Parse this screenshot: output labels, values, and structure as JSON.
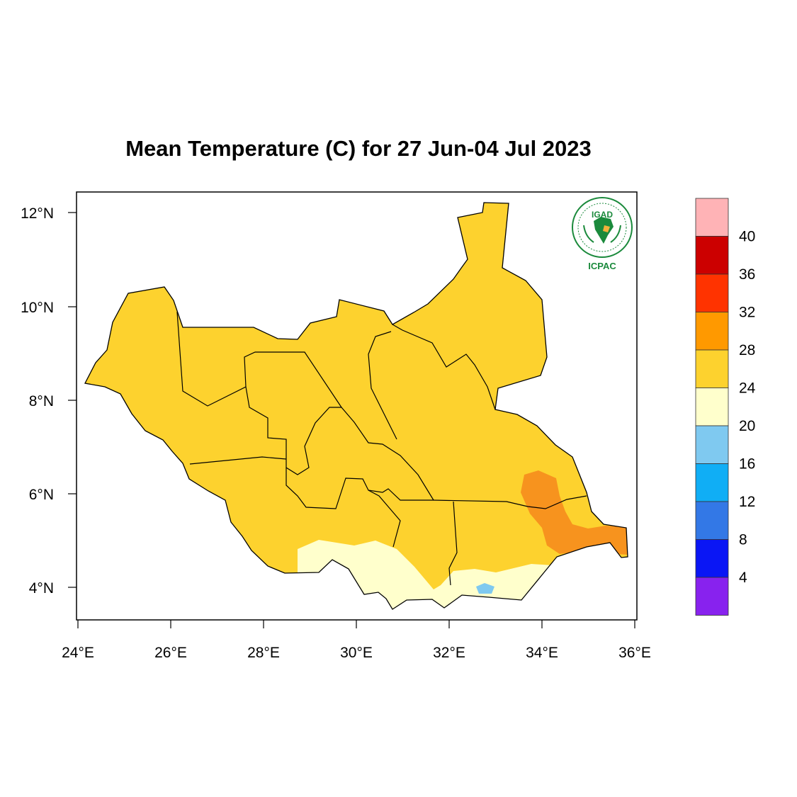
{
  "title": "Mean Temperature (C) for 27 Jun-04 Jul 2023",
  "map": {
    "region": "South Sudan",
    "lon_range": [
      24,
      36
    ],
    "lat_range": [
      3.5,
      12.5
    ],
    "x_ticks": [
      "24°E",
      "26°E",
      "28°E",
      "30°E",
      "32°E",
      "34°E",
      "36°E"
    ],
    "y_ticks": [
      "12°N",
      "10°N",
      "8°N",
      "6°N",
      "4°N"
    ],
    "dominant_class": "24-28",
    "warm_zone": {
      "class": "28-32",
      "location": "south-east (Kapoeta / Ilemi area)"
    },
    "cool_zone": {
      "class": "20-24",
      "location": "southern border"
    },
    "coldest_spot": {
      "class": "16-20",
      "location": "near 32.8°E, 4°N"
    }
  },
  "legend": {
    "labels": [
      "40",
      "36",
      "32",
      "28",
      "24",
      "20",
      "16",
      "12",
      "8",
      "4"
    ],
    "colors": [
      "#ffb3b6",
      "#cc0000",
      "#ff3300",
      "#ff9900",
      "#fdd22e",
      "#ffffcc",
      "#7fc9f0",
      "#10aef5",
      "#3378e6",
      "#0a16f5",
      "#8822ee"
    ]
  },
  "logo": {
    "name": "IGAD",
    "sub": "ICPAC",
    "color": "#1b8a3c"
  }
}
